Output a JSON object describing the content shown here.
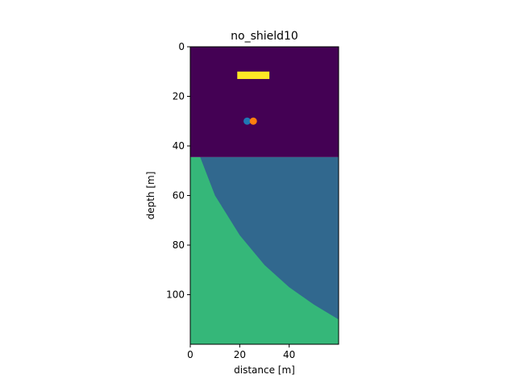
{
  "chart_data": {
    "type": "heatmap",
    "title": "no_shield10",
    "xlabel": "distance [m]",
    "ylabel": "depth [m]",
    "xlim": [
      0,
      60
    ],
    "ylim": [
      120,
      0
    ],
    "x_ticks": [
      0,
      20,
      40
    ],
    "y_ticks": [
      0,
      20,
      40,
      60,
      80,
      100
    ],
    "grid": false,
    "legend": "none",
    "colors": {
      "background_region": "#440154",
      "upper_layer": "#31688e",
      "lower_layer": "#35b779",
      "source_bar": "#fde725",
      "marker_blue": "#1f77b4",
      "marker_orange": "#ff7f0e"
    },
    "regions": [
      {
        "name": "air",
        "color": "#440154",
        "depth_from": 0,
        "depth_to": 44.5
      },
      {
        "name": "layer_upper",
        "color": "#31688e",
        "depth_from": 44.5,
        "depth_to": 120,
        "boundary_to_lower": [
          [
            4,
            44.5
          ],
          [
            10,
            60
          ],
          [
            20,
            76
          ],
          [
            30,
            88
          ],
          [
            40,
            97
          ],
          [
            50,
            104
          ],
          [
            60,
            110
          ]
        ]
      },
      {
        "name": "layer_lower",
        "color": "#35b779"
      }
    ],
    "source_bar": {
      "x_from": 19,
      "x_to": 32,
      "depth_from": 10,
      "depth_to": 13
    },
    "points": [
      {
        "x": 23,
        "y": 30,
        "color": "#1f77b4"
      },
      {
        "x": 25.5,
        "y": 30,
        "color": "#ff7f0e"
      }
    ]
  }
}
